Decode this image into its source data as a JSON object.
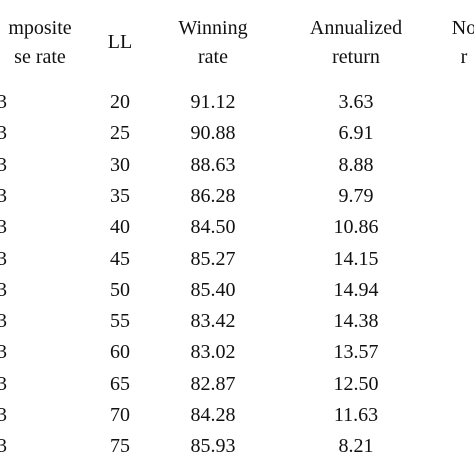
{
  "table": {
    "header": [
      [
        "mposite",
        "se rate"
      ],
      [
        "LL"
      ],
      [
        "Winning",
        "rate"
      ],
      [
        "Annualized",
        "return"
      ],
      [
        "No",
        "r"
      ]
    ],
    "rows": [
      [
        "3",
        "20",
        "91.12",
        "3.63"
      ],
      [
        "3",
        "25",
        "90.88",
        "6.91"
      ],
      [
        "3",
        "30",
        "88.63",
        "8.88"
      ],
      [
        "3",
        "35",
        "86.28",
        "9.79"
      ],
      [
        "3",
        "40",
        "84.50",
        "10.86"
      ],
      [
        "3",
        "45",
        "85.27",
        "14.15"
      ],
      [
        "3",
        "50",
        "85.40",
        "14.94"
      ],
      [
        "3",
        "55",
        "83.42",
        "14.38"
      ],
      [
        "3",
        "60",
        "83.02",
        "13.57"
      ],
      [
        "3",
        "65",
        "82.87",
        "12.50"
      ],
      [
        "3",
        "70",
        "84.28",
        "11.63"
      ],
      [
        "3",
        "75",
        "85.93",
        "8.21"
      ]
    ]
  }
}
